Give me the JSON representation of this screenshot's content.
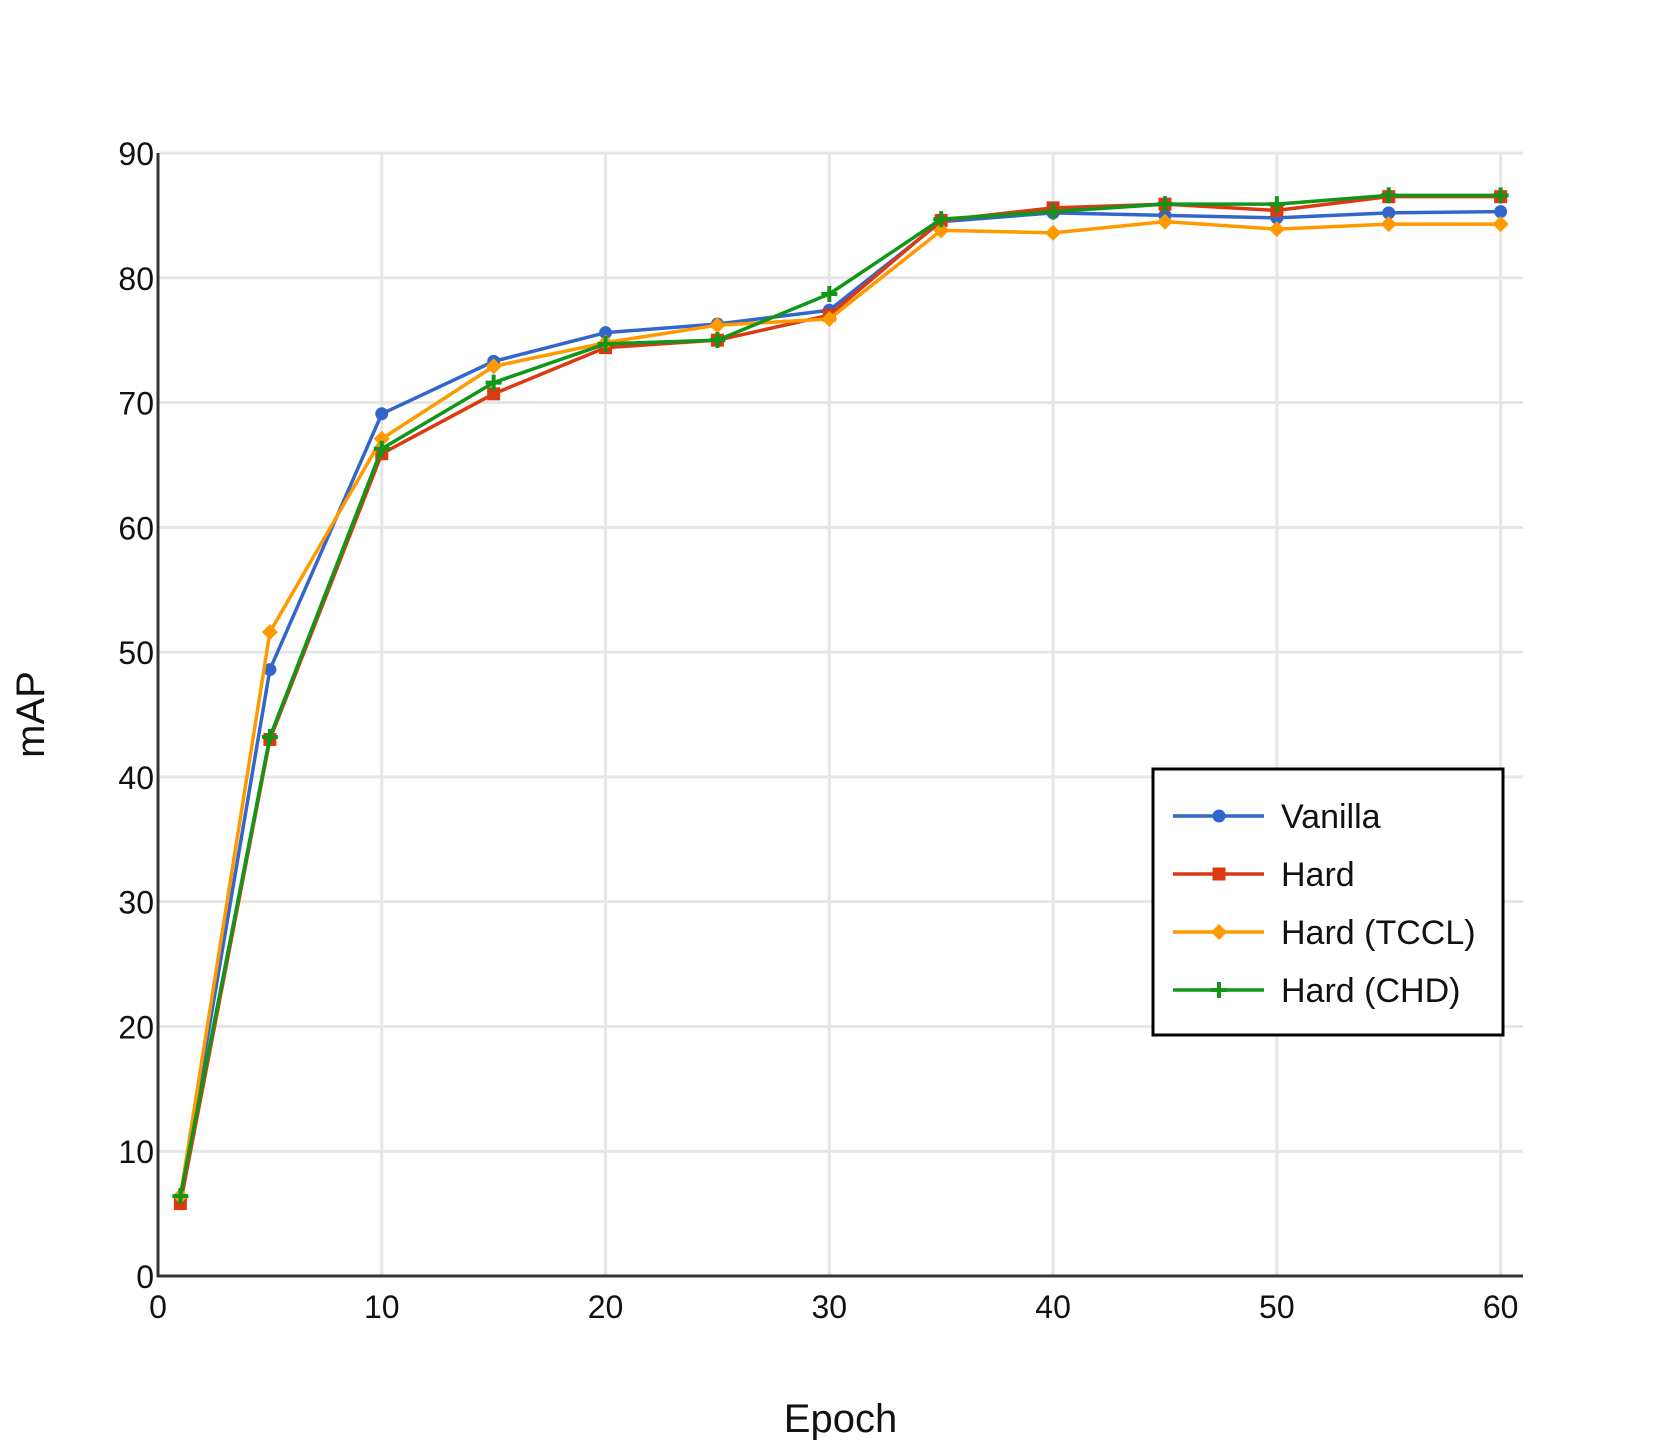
{
  "chart_data": {
    "type": "line",
    "title": "",
    "xlabel": "Epoch",
    "ylabel": "mAP",
    "xlim": [
      0,
      61
    ],
    "ylim": [
      0,
      90
    ],
    "xticks": [
      0,
      10,
      20,
      30,
      40,
      50,
      60
    ],
    "yticks": [
      0,
      10,
      20,
      30,
      40,
      50,
      60,
      70,
      80,
      90
    ],
    "grid": true,
    "legend_position": "center-right",
    "x": [
      1,
      5,
      10,
      15,
      20,
      25,
      30,
      35,
      40,
      45,
      50,
      55,
      60
    ],
    "series": [
      {
        "name": "Vanilla",
        "color": "#3366cc",
        "marker": "circle",
        "values": [
          6.3,
          48.6,
          69.1,
          73.3,
          75.6,
          76.3,
          77.4,
          84.5,
          85.2,
          85.0,
          84.8,
          85.2,
          85.3
        ]
      },
      {
        "name": "Hard",
        "color": "#dc3912",
        "marker": "square",
        "values": [
          5.8,
          43.0,
          65.9,
          70.7,
          74.4,
          75.0,
          77.0,
          84.6,
          85.6,
          85.9,
          85.4,
          86.5,
          86.5
        ]
      },
      {
        "name": "Hard (TCCL)",
        "color": "#ff9900",
        "marker": "diamond",
        "values": [
          6.4,
          51.6,
          67.1,
          72.9,
          74.8,
          76.2,
          76.7,
          83.8,
          83.6,
          84.5,
          83.9,
          84.3,
          84.3
        ]
      },
      {
        "name": "Hard (CHD)",
        "color": "#109618",
        "marker": "plus",
        "values": [
          6.4,
          43.2,
          66.3,
          71.6,
          74.7,
          75.0,
          78.7,
          84.7,
          85.3,
          85.9,
          85.9,
          86.6,
          86.6
        ]
      }
    ]
  }
}
